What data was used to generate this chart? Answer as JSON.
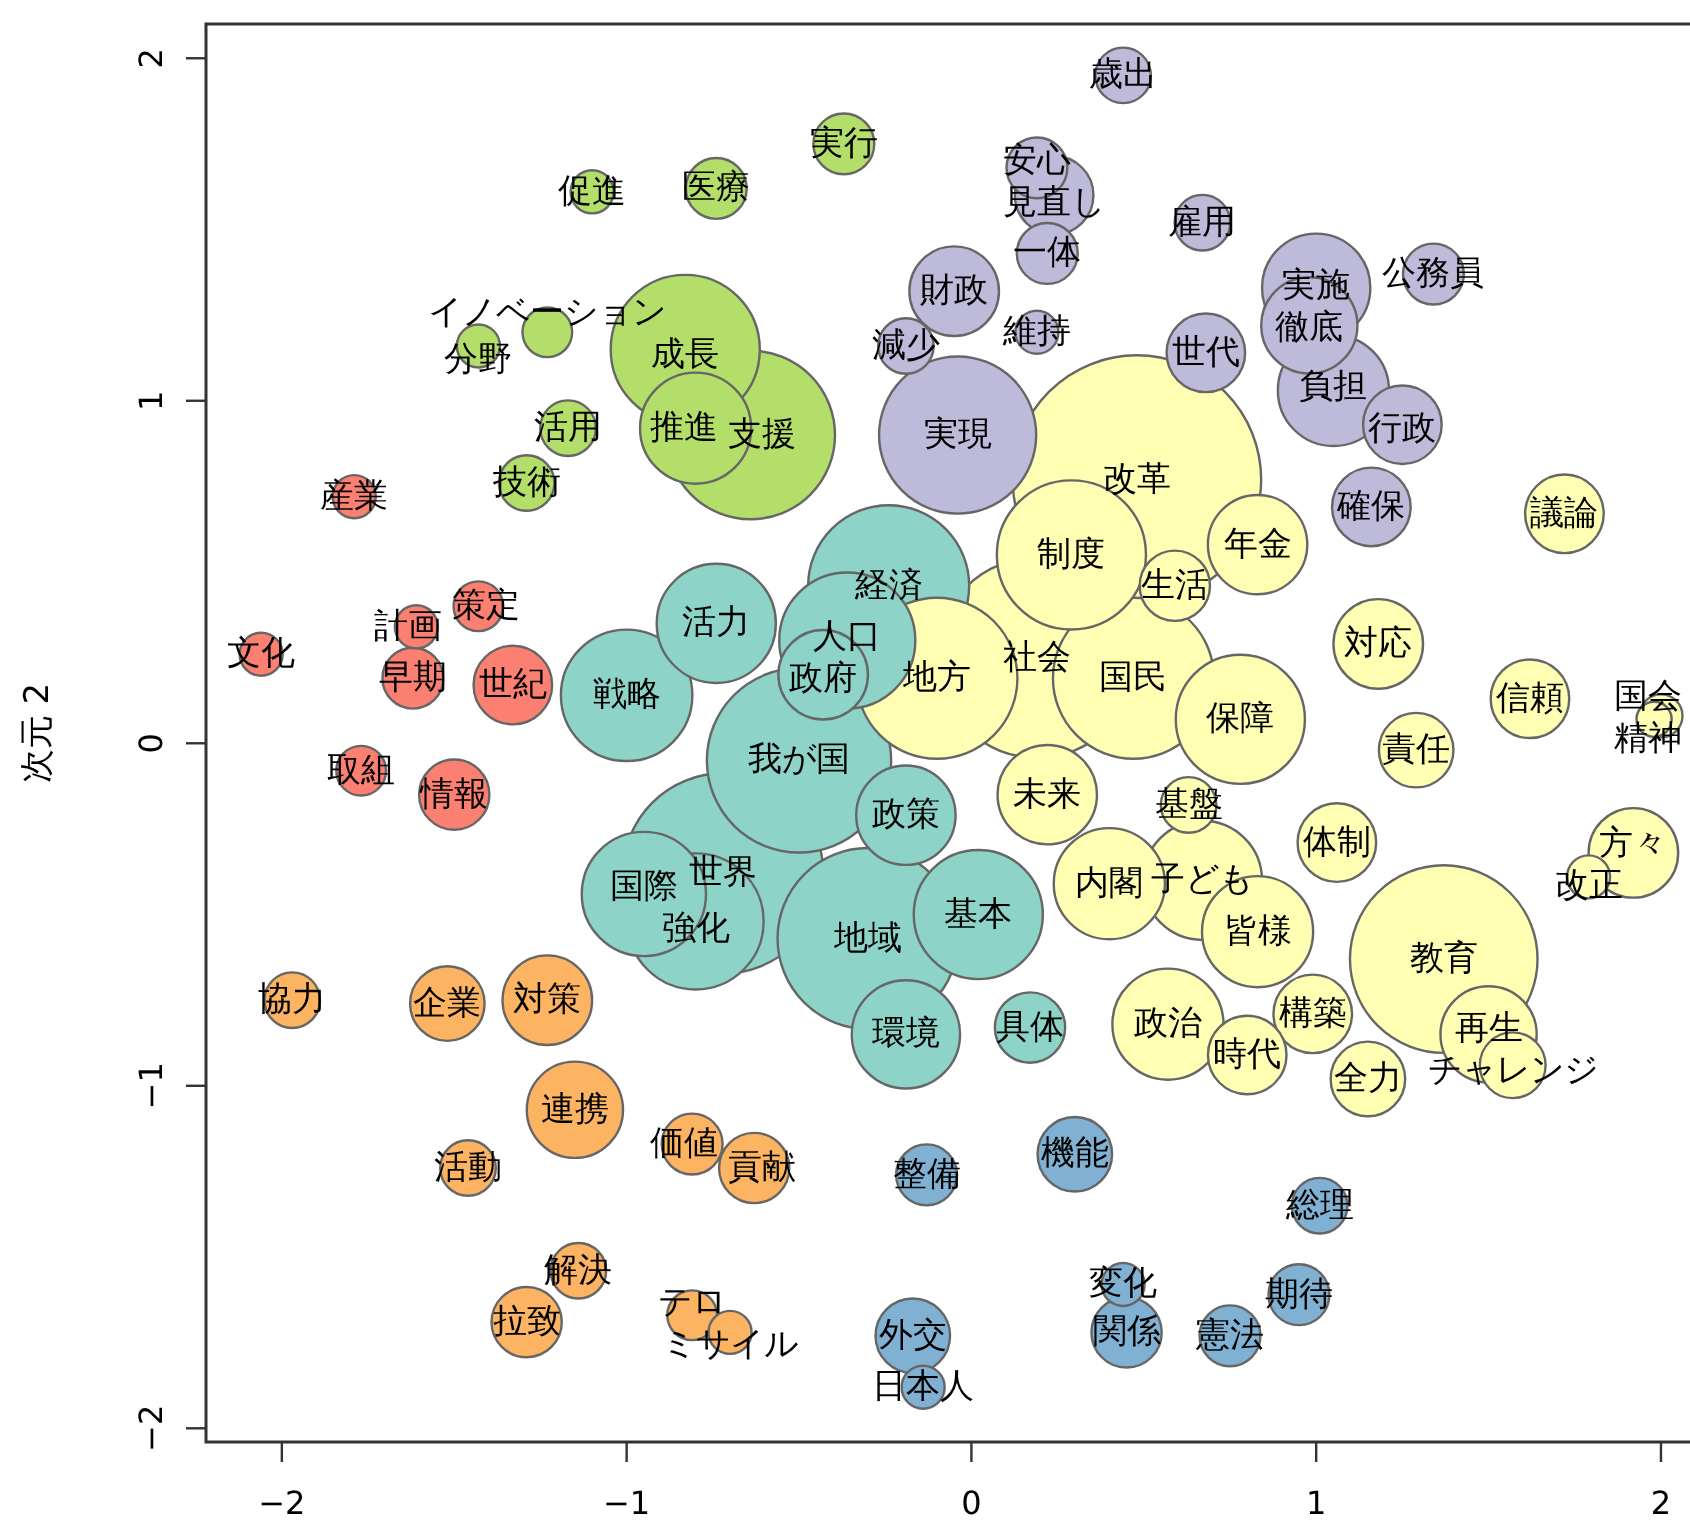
{
  "chart_data": {
    "type": "bubble",
    "ylabel": "次元 2",
    "xlim": [
      -2.22,
      2.09
    ],
    "ylim": [
      -2.04,
      2.1
    ],
    "xticks": [
      -2,
      -1,
      0,
      1,
      2
    ],
    "yticks": [
      -2,
      -1,
      0,
      1,
      2
    ],
    "series": [
      {
        "color": "#b3de69",
        "x": [
          -0.37,
          -0.74,
          -1.1,
          -1.23,
          -1.43,
          -1.17,
          -1.29,
          -0.83,
          -0.64,
          -0.8
        ],
        "values": [
          1.75,
          1.62,
          1.61,
          1.2,
          1.16,
          0.92,
          0.76,
          1.15,
          0.9,
          0.92
        ],
        "sizes": [
          0.06,
          0.06,
          0.03,
          0.04,
          0.03,
          0.05,
          0.05,
          0.36,
          0.46,
          0.2
        ]
      },
      {
        "color": "#fb8072",
        "x": [
          -1.79,
          -1.43,
          -1.61,
          -2.06,
          -1.62,
          -1.33,
          -1.77,
          -1.5
        ],
        "values": [
          0.72,
          0.4,
          0.34,
          0.26,
          0.19,
          0.17,
          -0.08,
          -0.15
        ],
        "sizes": [
          0.03,
          0.04,
          0.03,
          0.03,
          0.06,
          0.1,
          0.04,
          0.08
        ]
      },
      {
        "color": "#8dd3c7",
        "x": [
          -0.74,
          -1.0,
          -0.43,
          -0.24,
          -0.36,
          -0.5,
          -0.19,
          -0.95,
          -0.8,
          -0.72,
          -0.3,
          -0.19,
          0.02,
          0.17
        ],
        "values": [
          0.35,
          0.14,
          0.2,
          0.46,
          0.3,
          -0.05,
          -0.21,
          -0.44,
          -0.52,
          -0.38,
          -0.57,
          -0.85,
          -0.5,
          -0.83
        ],
        "sizes": [
          0.23,
          0.28,
          0.13,
          0.42,
          0.3,
          0.55,
          0.16,
          0.25,
          0.3,
          0.65,
          0.53,
          0.19,
          0.27,
          0.08
        ]
      },
      {
        "color": "#ffffb3",
        "x": [
          0.48,
          0.29,
          0.83,
          0.59,
          -0.1,
          0.19,
          0.47,
          0.78,
          1.18,
          1.72,
          1.62,
          2.0,
          1.98,
          1.29,
          0.63,
          0.22,
          0.4,
          0.67,
          0.83,
          1.06,
          1.37,
          1.92,
          1.79,
          0.99,
          1.5,
          1.57,
          0.57,
          0.8,
          1.15
        ],
        "values": [
          0.77,
          0.55,
          0.58,
          0.46,
          0.19,
          0.25,
          0.19,
          0.07,
          0.29,
          0.67,
          0.13,
          0.08,
          0.07,
          -0.02,
          -0.18,
          -0.15,
          -0.41,
          -0.4,
          -0.55,
          -0.29,
          -0.63,
          -0.32,
          -0.39,
          -0.79,
          -0.85,
          -0.94,
          -0.82,
          -0.91,
          -0.98
        ],
        "sizes": [
          1.0,
          0.36,
          0.16,
          0.08,
          0.42,
          0.65,
          0.42,
          0.27,
          0.13,
          0.1,
          0.1,
          0.03,
          0.02,
          0.09,
          0.05,
          0.16,
          0.2,
          0.23,
          0.2,
          0.1,
          0.57,
          0.13,
          0.03,
          0.1,
          0.15,
          0.07,
          0.2,
          0.1,
          0.09
        ]
      },
      {
        "color": "#bebada",
        "x": [
          0.44,
          0.19,
          0.24,
          0.22,
          0.67,
          -0.05,
          -0.19,
          0.19,
          0.68,
          -0.04,
          1.0,
          0.98,
          1.05,
          1.25,
          1.34,
          1.16
        ],
        "values": [
          1.95,
          1.68,
          1.6,
          1.43,
          1.52,
          1.32,
          1.16,
          1.2,
          1.14,
          0.9,
          1.33,
          1.22,
          1.03,
          0.93,
          1.37,
          0.69
        ],
        "sizes": [
          0.05,
          0.06,
          0.1,
          0.06,
          0.05,
          0.13,
          0.05,
          0.03,
          0.1,
          0.4,
          0.19,
          0.15,
          0.2,
          0.1,
          0.06,
          0.1
        ]
      },
      {
        "color": "#80b1d3",
        "x": [
          -0.13,
          0.3,
          1.01,
          0.44,
          0.95,
          0.45,
          0.75,
          -0.17,
          -0.14
        ],
        "values": [
          -1.26,
          -1.2,
          -1.35,
          -1.58,
          -1.61,
          -1.72,
          -1.73,
          -1.73,
          -1.88
        ],
        "sizes": [
          0.06,
          0.09,
          0.05,
          0.03,
          0.06,
          0.08,
          0.06,
          0.09,
          0.03
        ]
      },
      {
        "color": "#fdb462",
        "x": [
          -1.97,
          -1.52,
          -1.23,
          -1.15,
          -0.81,
          -0.63,
          -1.46,
          -1.14,
          -1.29,
          -0.81,
          -0.7
        ],
        "values": [
          -0.75,
          -0.76,
          -0.75,
          -1.07,
          -1.17,
          -1.24,
          -1.24,
          -1.54,
          -1.69,
          -1.67,
          -1.72
        ],
        "sizes": [
          0.05,
          0.09,
          0.13,
          0.15,
          0.06,
          0.08,
          0.05,
          0.05,
          0.08,
          0.04,
          0.03
        ]
      }
    ],
    "annotations": [
      {
        "text": "実行",
        "x": -0.37,
        "y": 1.75
      },
      {
        "text": "医療",
        "x": -0.74,
        "y": 1.62
      },
      {
        "text": "促進",
        "x": -1.1,
        "y": 1.61
      },
      {
        "text": "イノベーション",
        "x": -1.23,
        "y": 1.2
      },
      {
        "text": "分野",
        "x": -1.43,
        "y": 1.16
      },
      {
        "text": "活用",
        "x": -1.17,
        "y": 0.92
      },
      {
        "text": "技術",
        "x": -1.29,
        "y": 0.76
      },
      {
        "text": "成長",
        "x": -0.83,
        "y": 1.15
      },
      {
        "text": "推進",
        "x": -0.8,
        "y": 0.92
      },
      {
        "text": "支援",
        "x": -0.64,
        "y": 0.9
      },
      {
        "text": "産業",
        "x": -1.79,
        "y": 0.72
      },
      {
        "text": "策定",
        "x": -1.43,
        "y": 0.4
      },
      {
        "text": "計画",
        "x": -1.61,
        "y": 0.34
      },
      {
        "text": "文化",
        "x": -2.06,
        "y": 0.26
      },
      {
        "text": "早期",
        "x": -1.62,
        "y": 0.19
      },
      {
        "text": "世紀",
        "x": -1.33,
        "y": 0.17
      },
      {
        "text": "取組",
        "x": -1.77,
        "y": -0.08
      },
      {
        "text": "情報",
        "x": -1.5,
        "y": -0.15
      },
      {
        "text": "活力",
        "x": -0.74,
        "y": 0.35
      },
      {
        "text": "戦略",
        "x": -1.0,
        "y": 0.14
      },
      {
        "text": "政府",
        "x": -0.43,
        "y": 0.2
      },
      {
        "text": "経済",
        "x": -0.24,
        "y": 0.46
      },
      {
        "text": "人口",
        "x": -0.36,
        "y": 0.3
      },
      {
        "text": "我が国",
        "x": -0.5,
        "y": -0.05
      },
      {
        "text": "政策",
        "x": -0.19,
        "y": -0.21
      },
      {
        "text": "国際",
        "x": -0.95,
        "y": -0.44
      },
      {
        "text": "強化",
        "x": -0.8,
        "y": -0.52
      },
      {
        "text": "世界",
        "x": -0.72,
        "y": -0.38
      },
      {
        "text": "地域",
        "x": -0.3,
        "y": -0.57
      },
      {
        "text": "環境",
        "x": -0.19,
        "y": -0.85
      },
      {
        "text": "基本",
        "x": 0.02,
        "y": -0.5
      },
      {
        "text": "具体",
        "x": 0.17,
        "y": -0.83
      },
      {
        "text": "改革",
        "x": 0.48,
        "y": 0.77
      },
      {
        "text": "制度",
        "x": 0.29,
        "y": 0.55
      },
      {
        "text": "年金",
        "x": 0.83,
        "y": 0.58
      },
      {
        "text": "生活",
        "x": 0.59,
        "y": 0.46
      },
      {
        "text": "地方",
        "x": -0.1,
        "y": 0.19
      },
      {
        "text": "社会",
        "x": 0.19,
        "y": 0.25
      },
      {
        "text": "国民",
        "x": 0.47,
        "y": 0.19
      },
      {
        "text": "保障",
        "x": 0.78,
        "y": 0.07
      },
      {
        "text": "対応",
        "x": 1.18,
        "y": 0.29
      },
      {
        "text": "議論",
        "x": 1.72,
        "y": 0.67
      },
      {
        "text": "信頼",
        "x": 1.62,
        "y": 0.13
      },
      {
        "text": "国会",
        "x": 2.0,
        "y": 0.08
      },
      {
        "text": "精神",
        "x": 1.98,
        "y": 0.07
      },
      {
        "text": "責任",
        "x": 1.29,
        "y": -0.02
      },
      {
        "text": "基盤",
        "x": 0.63,
        "y": -0.18
      },
      {
        "text": "未来",
        "x": 0.22,
        "y": -0.15
      },
      {
        "text": "内閣",
        "x": 0.4,
        "y": -0.41
      },
      {
        "text": "子ども",
        "x": 0.67,
        "y": -0.4
      },
      {
        "text": "皆様",
        "x": 0.83,
        "y": -0.55
      },
      {
        "text": "体制",
        "x": 1.06,
        "y": -0.29
      },
      {
        "text": "教育",
        "x": 1.37,
        "y": -0.63
      },
      {
        "text": "方々",
        "x": 1.92,
        "y": -0.32
      },
      {
        "text": "改正",
        "x": 1.79,
        "y": -0.39
      },
      {
        "text": "構築",
        "x": 0.99,
        "y": -0.79
      },
      {
        "text": "再生",
        "x": 1.5,
        "y": -0.85
      },
      {
        "text": "チャレンジ",
        "x": 1.57,
        "y": -0.94
      },
      {
        "text": "政治",
        "x": 0.57,
        "y": -0.82
      },
      {
        "text": "時代",
        "x": 0.8,
        "y": -0.91
      },
      {
        "text": "全力",
        "x": 1.15,
        "y": -0.98
      },
      {
        "text": "歳出",
        "x": 0.44,
        "y": 1.95
      },
      {
        "text": "安心",
        "x": 0.19,
        "y": 1.68
      },
      {
        "text": "見直し",
        "x": 0.24,
        "y": 1.6
      },
      {
        "text": "一体",
        "x": 0.22,
        "y": 1.43
      },
      {
        "text": "雇用",
        "x": 0.67,
        "y": 1.52
      },
      {
        "text": "財政",
        "x": -0.05,
        "y": 1.32
      },
      {
        "text": "減少",
        "x": -0.19,
        "y": 1.16
      },
      {
        "text": "維持",
        "x": 0.19,
        "y": 1.2
      },
      {
        "text": "世代",
        "x": 0.68,
        "y": 1.14
      },
      {
        "text": "実現",
        "x": -0.04,
        "y": 0.9
      },
      {
        "text": "実施",
        "x": 1.0,
        "y": 1.33
      },
      {
        "text": "徹底",
        "x": 0.98,
        "y": 1.22
      },
      {
        "text": "負担",
        "x": 1.05,
        "y": 1.03
      },
      {
        "text": "行政",
        "x": 1.25,
        "y": 0.93
      },
      {
        "text": "公務員",
        "x": 1.34,
        "y": 1.37
      },
      {
        "text": "確保",
        "x": 1.16,
        "y": 0.69
      },
      {
        "text": "整備",
        "x": -0.13,
        "y": -1.26
      },
      {
        "text": "機能",
        "x": 0.3,
        "y": -1.2
      },
      {
        "text": "総理",
        "x": 1.01,
        "y": -1.35
      },
      {
        "text": "変化",
        "x": 0.44,
        "y": -1.58
      },
      {
        "text": "期待",
        "x": 0.95,
        "y": -1.61
      },
      {
        "text": "関係",
        "x": 0.45,
        "y": -1.72
      },
      {
        "text": "憲法",
        "x": 0.75,
        "y": -1.73
      },
      {
        "text": "外交",
        "x": -0.17,
        "y": -1.73
      },
      {
        "text": "日本人",
        "x": -0.14,
        "y": -1.88
      },
      {
        "text": "協力",
        "x": -1.97,
        "y": -0.75
      },
      {
        "text": "企業",
        "x": -1.52,
        "y": -0.76
      },
      {
        "text": "対策",
        "x": -1.23,
        "y": -0.75
      },
      {
        "text": "連携",
        "x": -1.15,
        "y": -1.07
      },
      {
        "text": "価値",
        "x": -0.81,
        "y": -1.17
      },
      {
        "text": "貢献",
        "x": -0.63,
        "y": -1.24
      },
      {
        "text": "活動",
        "x": -1.46,
        "y": -1.24
      },
      {
        "text": "解決",
        "x": -1.14,
        "y": -1.54
      },
      {
        "text": "拉致",
        "x": -1.29,
        "y": -1.69
      },
      {
        "text": "テロ",
        "x": -0.81,
        "y": -1.67
      },
      {
        "text": "ミサイル",
        "x": -0.7,
        "y": -1.72
      }
    ]
  }
}
